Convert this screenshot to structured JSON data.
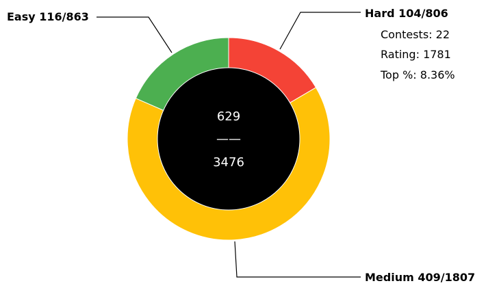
{
  "chart_data": {
    "type": "pie",
    "categories": [
      "Hard",
      "Medium",
      "Easy"
    ],
    "values": [
      104,
      409,
      116
    ],
    "totals": [
      806,
      1807,
      863
    ],
    "colors": {
      "Hard": "#F44336",
      "Medium": "#FFC107",
      "Easy": "#4CAF50",
      "center": "#000000",
      "center_text": "#ffffff"
    },
    "labels": {
      "hard": "Hard 104/806",
      "medium": "Medium 409/1807",
      "easy": "Easy 116/863"
    },
    "center": {
      "solved": "629",
      "divider": "——",
      "total": "3476"
    }
  },
  "stats": {
    "contests": "Contests: 22",
    "rating": "Rating: 1781",
    "top_percent": "Top %: 8.36%"
  }
}
